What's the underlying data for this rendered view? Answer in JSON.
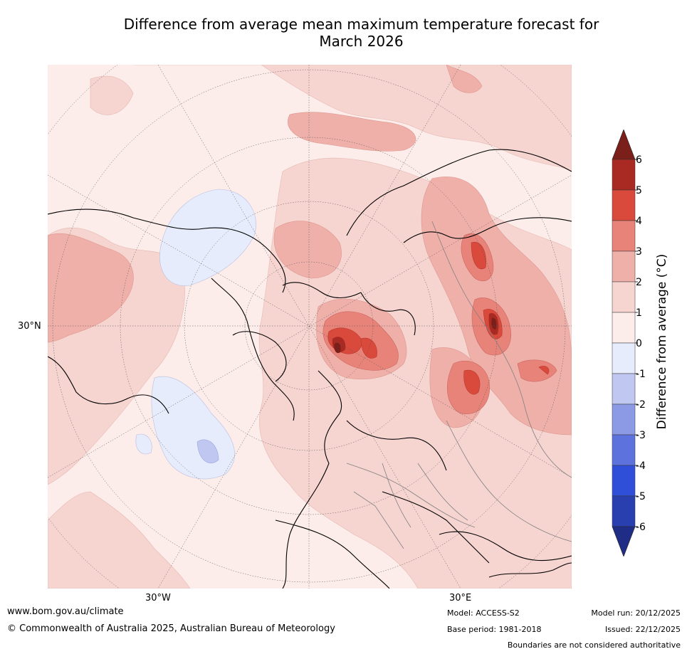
{
  "title_line1": "Difference from average mean maximum temperature forecast for",
  "title_line2": "March 2026",
  "map": {
    "lat_label": "30°N",
    "lon_labels": [
      "30°W",
      "30°E"
    ]
  },
  "colorbar": {
    "label": "Difference from average (°C)",
    "ticks": [
      "6",
      "5",
      "4",
      "3",
      "2",
      "1",
      "0",
      "-1",
      "-2",
      "-3",
      "-4",
      "-5",
      "-6"
    ],
    "colors": {
      "gt6": "#7a1f19",
      "5_6": "#a82a22",
      "4_5": "#d94a3d",
      "3_4": "#e8837a",
      "2_3": "#f0b0aa",
      "1_2": "#f6d4d0",
      "0_1": "#fcecea",
      "m1_0": "#e7ecfc",
      "m2_m1": "#c0c8f1",
      "m3_m2": "#8c9ae6",
      "m4_m3": "#5e72dd",
      "m5_m4": "#2f4fd9",
      "m6_m5": "#2a3faf",
      "ltm6": "#1f2d86"
    }
  },
  "footer": {
    "website": "www.bom.gov.au/climate",
    "copyright": "© Commonwealth of Australia 2025, Australian Bureau of Meteorology",
    "model": "Model: ACCESS-S2",
    "base_period": "Base period: 1981-2018",
    "model_run": "Model run: 20/12/2025",
    "issued": "Issued: 22/12/2025",
    "disclaimer": "Boundaries are not considered authoritative"
  }
}
